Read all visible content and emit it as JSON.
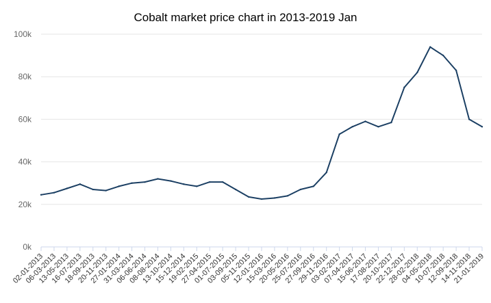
{
  "chart_data": {
    "type": "line",
    "title": "Cobalt market price chart in 2013-2019 Jan",
    "xlabel": "",
    "ylabel": "",
    "ylim": [
      0,
      100000
    ],
    "y_ticks": [
      "0k",
      "20k",
      "40k",
      "60k",
      "80k",
      "100k"
    ],
    "grid": "horizontal",
    "colors": {
      "line": "#1b3f63",
      "grid": "#e6e6e6",
      "axis": "#ccd6eb"
    },
    "categories": [
      "02-01-2013",
      "06-03-2013",
      "13-05-2013",
      "16-07-2013",
      "18-09-2013",
      "20-11-2013",
      "27-01-2014",
      "31-03-2014",
      "06-06-2014",
      "08-08-2014",
      "13-10-2014",
      "15-12-2014",
      "19-02-2015",
      "27-04-2015",
      "01-07-2015",
      "03-09-2015",
      "05-11-2015",
      "12-01-2016",
      "15-03-2016",
      "20-05-2016",
      "25-07-2016",
      "27-09-2016",
      "29-11-2016",
      "03-02-2017",
      "07-04-2017",
      "15-06-2017",
      "17-08-2017",
      "20-10-2017",
      "22-12-2017",
      "28-02-2018",
      "04-05-2018",
      "10-07-2018",
      "12-09-2018",
      "14-11-2018",
      "21-01-2019"
    ],
    "series": [
      {
        "values": [
          24500,
          25500,
          27500,
          29500,
          27000,
          26500,
          28500,
          30000,
          30500,
          32000,
          31000,
          29500,
          28500,
          30500,
          30500,
          27000,
          23500,
          22500,
          23000,
          24000,
          27000,
          28500,
          35000,
          53000,
          56500,
          59000,
          56500,
          58500,
          75000,
          82000,
          94000,
          90000,
          83000,
          60000,
          56500
        ]
      }
    ]
  }
}
